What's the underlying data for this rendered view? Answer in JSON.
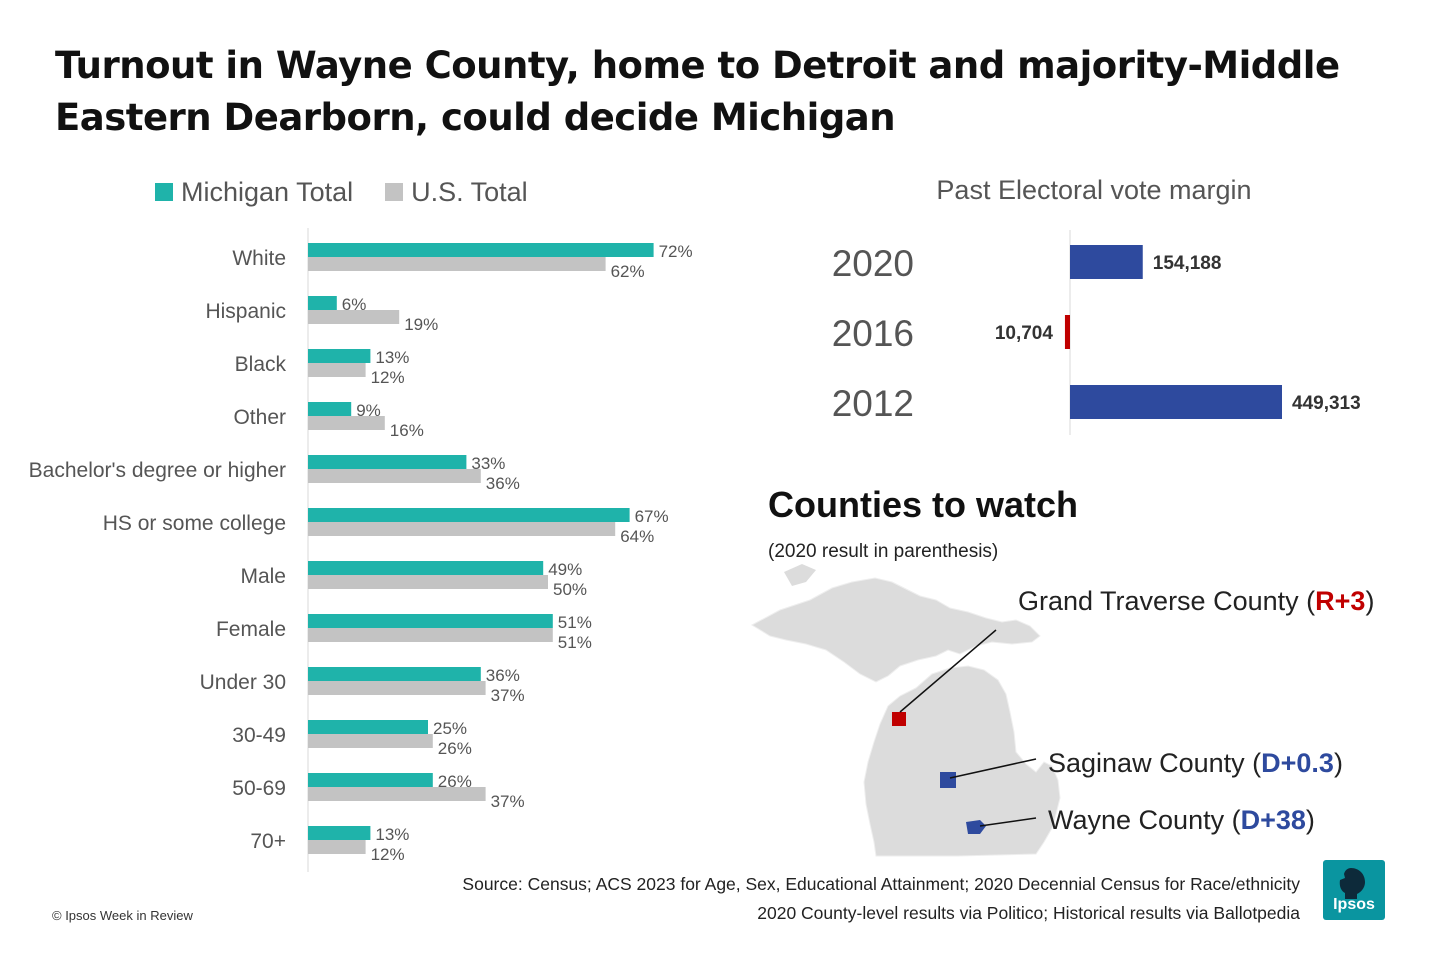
{
  "title": "Turnout in Wayne County, home to Detroit and majority-Middle Eastern Dearborn, could decide Michigan",
  "colors": {
    "michigan": "#1fb3aa",
    "us": "#c3c3c3",
    "dem": "#2e4a9e",
    "rep": "#c00000",
    "map_fill": "#dcdcdc"
  },
  "chart_data": [
    {
      "type": "bar",
      "orientation": "horizontal",
      "categories": [
        "White",
        "Hispanic",
        "Black",
        "Other",
        "Bachelor's degree or higher",
        "HS or some college",
        "Male",
        "Female",
        "Under 30",
        "30-49",
        "50-69",
        "70+"
      ],
      "series": [
        {
          "name": "Michigan Total",
          "values": [
            72,
            6,
            13,
            9,
            33,
            67,
            49,
            51,
            36,
            25,
            26,
            13
          ],
          "labels": [
            "72%",
            "6%",
            "13%",
            "9%",
            "33%",
            "67%",
            "49%",
            "51%",
            "36%",
            "25%",
            "26%",
            "13%"
          ]
        },
        {
          "name": "U.S. Total",
          "values": [
            62,
            19,
            12,
            16,
            36,
            64,
            50,
            51,
            37,
            26,
            37,
            12
          ],
          "labels": [
            "62%",
            "19%",
            "12%",
            "16%",
            "36%",
            "64%",
            "50%",
            "51%",
            "37%",
            "26%",
            "37%",
            "12%"
          ]
        }
      ],
      "xlim": [
        0,
        100
      ],
      "legend": "top-left",
      "grid": false
    },
    {
      "type": "bar",
      "orientation": "horizontal",
      "title": "Past Electoral vote margin",
      "categories": [
        "2020",
        "2016",
        "2012"
      ],
      "values": [
        154188,
        -10704,
        449313
      ],
      "labels": [
        "154,188",
        "10,704",
        "449,313"
      ],
      "grid": false
    }
  ],
  "counties": {
    "heading": "Counties to watch",
    "subheading": "(2020 result in parenthesis)",
    "items": [
      {
        "name": "Grand Traverse County",
        "result": "R+3",
        "party": "rep"
      },
      {
        "name": "Saginaw County",
        "result": "D+0.3",
        "party": "dem"
      },
      {
        "name": "Wayne County",
        "result": "D+38",
        "party": "dem"
      }
    ]
  },
  "source": {
    "line1": "Source: Census; ACS 2023 for Age, Sex, Educational Attainment; 2020 Decennial Census for Race/ethnicity",
    "line2": "2020 County-level results via Politico; Historical results via Ballotpedia"
  },
  "copyright": "© Ipsos Week in Review",
  "logo_text": "Ipsos"
}
